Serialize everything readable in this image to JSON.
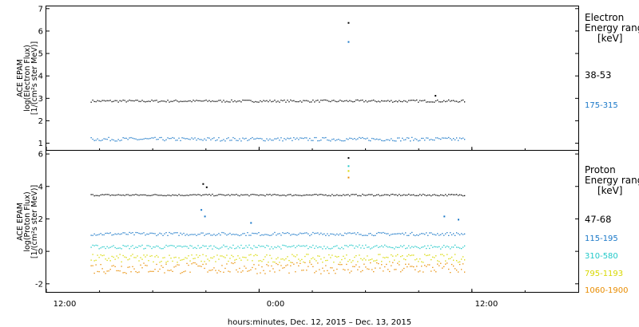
{
  "chart_data": [
    {
      "type": "scatter",
      "panel": "electron",
      "ylabel_lines": [
        "ACE EPAM",
        "log(Electron Flux)",
        "[1/(cm²s ster MeV)]"
      ],
      "ylim": [
        0.7,
        7.1
      ],
      "yticks": [
        1,
        2,
        3,
        4,
        5,
        6,
        7
      ],
      "legend_title": [
        "Electron",
        "Energy ranges",
        "[keV]"
      ],
      "series": [
        {
          "name": "38-53",
          "color": "#000000",
          "base": 2.9,
          "jitter": 0.05,
          "spikes": [
            {
              "x": 29.0,
              "y": 6.4
            },
            {
              "x": 33.9,
              "y": 3.15
            }
          ]
        },
        {
          "name": "175-315",
          "color": "#1a78c8",
          "base": 1.2,
          "jitter": 0.08,
          "spikes": [
            {
              "x": 29.0,
              "y": 5.55
            }
          ]
        }
      ]
    },
    {
      "type": "scatter",
      "panel": "proton",
      "ylabel_lines": [
        "ACE EPAM",
        "log(Proton Flux)",
        "[1/(cm²s ster MeV)]"
      ],
      "ylim": [
        -2.5,
        6.2
      ],
      "yticks": [
        -2,
        0,
        2,
        4,
        6
      ],
      "legend_title": [
        "Proton",
        "Energy ranges",
        "[keV]"
      ],
      "series": [
        {
          "name": "47-68",
          "color": "#000000",
          "base": 3.5,
          "jitter": 0.05,
          "spikes": [
            {
              "x": 29.0,
              "y": 5.8
            },
            {
              "x": 20.8,
              "y": 4.2
            },
            {
              "x": 21.0,
              "y": 4.0
            }
          ]
        },
        {
          "name": "115-195",
          "color": "#1a78c8",
          "base": 1.1,
          "jitter": 0.1,
          "spikes": [
            {
              "x": 20.7,
              "y": 2.6
            },
            {
              "x": 20.9,
              "y": 2.2
            },
            {
              "x": 23.5,
              "y": 1.8
            },
            {
              "x": 35.2,
              "y": 2.0
            },
            {
              "x": 34.4,
              "y": 2.2
            }
          ]
        },
        {
          "name": "310-580",
          "color": "#20c8c8",
          "base": 0.3,
          "jitter": 0.12,
          "spikes": [
            {
              "x": 29.0,
              "y": 5.3
            }
          ]
        },
        {
          "name": "795-1193",
          "color": "#d8d800",
          "base": -0.4,
          "jitter": 0.25,
          "spikes": [
            {
              "x": 29.0,
              "y": 5.0
            }
          ]
        },
        {
          "name": "1060-1900",
          "color": "#e88c00",
          "base": -1.0,
          "jitter": 0.35,
          "spikes": [
            {
              "x": 29.0,
              "y": 4.6
            }
          ]
        }
      ]
    }
  ],
  "x_axis": {
    "xlim": [
      12,
      42
    ],
    "data_end": 35.6,
    "ticks": [
      {
        "x": 12,
        "label": "12:00"
      },
      {
        "x": 24,
        "label": "0:00"
      },
      {
        "x": 36,
        "label": "12:00"
      }
    ],
    "xlabel": "hours:minutes, Dec. 12, 2015 – Dec. 13, 2015"
  }
}
